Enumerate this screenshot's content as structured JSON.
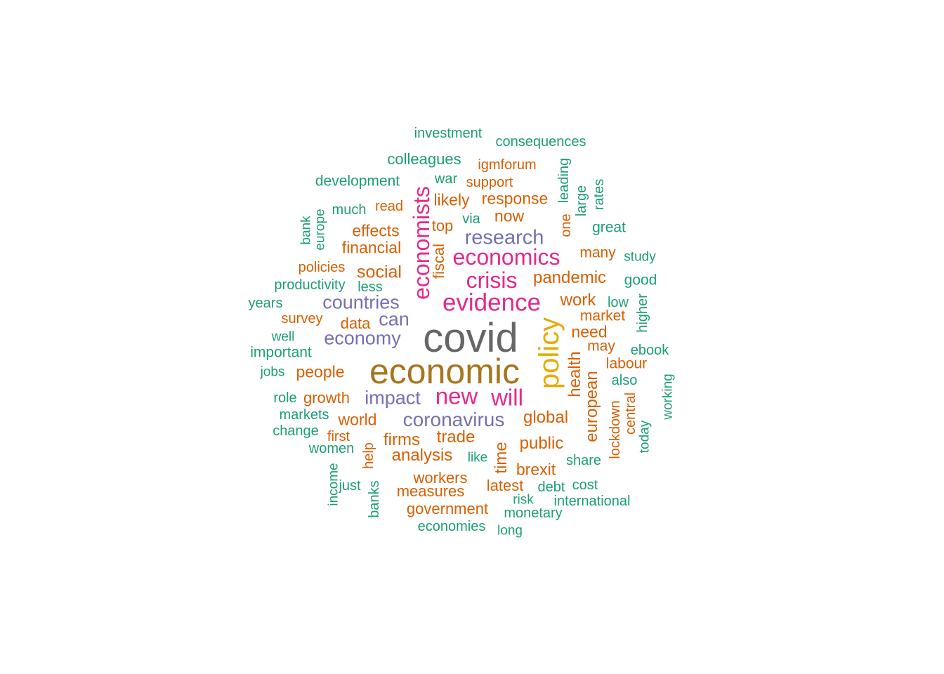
{
  "palette": {
    "green": "#1b9e77",
    "orange": "#d95f02",
    "purple": "#7570b3",
    "pink": "#e7298a",
    "olive": "#a6761d",
    "gold": "#e6ab02",
    "gray": "#666666"
  },
  "words": [
    {
      "text": "covid",
      "color": "gray"
    },
    {
      "text": "economic",
      "color": "olive"
    },
    {
      "text": "policy",
      "color": "gold"
    },
    {
      "text": "evidence",
      "color": "pink"
    },
    {
      "text": "crisis",
      "color": "pink"
    },
    {
      "text": "economics",
      "color": "pink"
    },
    {
      "text": "economists",
      "color": "pink"
    },
    {
      "text": "new",
      "color": "pink"
    },
    {
      "text": "will",
      "color": "pink"
    },
    {
      "text": "research",
      "color": "purple"
    },
    {
      "text": "countries",
      "color": "purple"
    },
    {
      "text": "can",
      "color": "purple"
    },
    {
      "text": "economy",
      "color": "purple"
    },
    {
      "text": "impact",
      "color": "purple"
    },
    {
      "text": "coronavirus",
      "color": "purple"
    },
    {
      "text": "pandemic",
      "color": "orange"
    },
    {
      "text": "social",
      "color": "orange"
    },
    {
      "text": "financial",
      "color": "orange"
    },
    {
      "text": "effects",
      "color": "orange"
    },
    {
      "text": "response",
      "color": "orange"
    },
    {
      "text": "likely",
      "color": "orange"
    },
    {
      "text": "now",
      "color": "orange"
    },
    {
      "text": "top",
      "color": "orange"
    },
    {
      "text": "fiscal",
      "color": "orange"
    },
    {
      "text": "work",
      "color": "orange"
    },
    {
      "text": "need",
      "color": "orange"
    },
    {
      "text": "market",
      "color": "orange"
    },
    {
      "text": "may",
      "color": "orange"
    },
    {
      "text": "health",
      "color": "orange"
    },
    {
      "text": "european",
      "color": "orange"
    },
    {
      "text": "labour",
      "color": "orange"
    },
    {
      "text": "global",
      "color": "orange"
    },
    {
      "text": "public",
      "color": "orange"
    },
    {
      "text": "trade",
      "color": "orange"
    },
    {
      "text": "firms",
      "color": "orange"
    },
    {
      "text": "analysis",
      "color": "orange"
    },
    {
      "text": "world",
      "color": "orange"
    },
    {
      "text": "growth",
      "color": "orange"
    },
    {
      "text": "people",
      "color": "orange"
    },
    {
      "text": "data",
      "color": "orange"
    },
    {
      "text": "survey",
      "color": "orange"
    },
    {
      "text": "policies",
      "color": "orange"
    },
    {
      "text": "read",
      "color": "orange"
    },
    {
      "text": "support",
      "color": "orange"
    },
    {
      "text": "igmforum",
      "color": "orange"
    },
    {
      "text": "time",
      "color": "orange"
    },
    {
      "text": "brexit",
      "color": "orange"
    },
    {
      "text": "latest",
      "color": "orange"
    },
    {
      "text": "workers",
      "color": "orange"
    },
    {
      "text": "measures",
      "color": "orange"
    },
    {
      "text": "government",
      "color": "orange"
    },
    {
      "text": "many",
      "color": "orange"
    },
    {
      "text": "one",
      "color": "orange"
    },
    {
      "text": "lockdown",
      "color": "orange"
    },
    {
      "text": "central",
      "color": "orange"
    },
    {
      "text": "first",
      "color": "orange"
    },
    {
      "text": "help",
      "color": "orange"
    },
    {
      "text": "investment",
      "color": "green"
    },
    {
      "text": "consequences",
      "color": "green"
    },
    {
      "text": "colleagues",
      "color": "green"
    },
    {
      "text": "war",
      "color": "green"
    },
    {
      "text": "development",
      "color": "green"
    },
    {
      "text": "much",
      "color": "green"
    },
    {
      "text": "via",
      "color": "green"
    },
    {
      "text": "leading",
      "color": "green"
    },
    {
      "text": "large",
      "color": "green"
    },
    {
      "text": "rates",
      "color": "green"
    },
    {
      "text": "great",
      "color": "green"
    },
    {
      "text": "study",
      "color": "green"
    },
    {
      "text": "good",
      "color": "green"
    },
    {
      "text": "low",
      "color": "green"
    },
    {
      "text": "higher",
      "color": "green"
    },
    {
      "text": "ebook",
      "color": "green"
    },
    {
      "text": "also",
      "color": "green"
    },
    {
      "text": "working",
      "color": "green"
    },
    {
      "text": "today",
      "color": "green"
    },
    {
      "text": "share",
      "color": "green"
    },
    {
      "text": "cost",
      "color": "green"
    },
    {
      "text": "international",
      "color": "green"
    },
    {
      "text": "debt",
      "color": "green"
    },
    {
      "text": "risk",
      "color": "green"
    },
    {
      "text": "monetary",
      "color": "green"
    },
    {
      "text": "long",
      "color": "green"
    },
    {
      "text": "economies",
      "color": "green"
    },
    {
      "text": "like",
      "color": "green"
    },
    {
      "text": "banks",
      "color": "green"
    },
    {
      "text": "just",
      "color": "green"
    },
    {
      "text": "income",
      "color": "green"
    },
    {
      "text": "women",
      "color": "green"
    },
    {
      "text": "change",
      "color": "green"
    },
    {
      "text": "markets",
      "color": "green"
    },
    {
      "text": "role",
      "color": "green"
    },
    {
      "text": "jobs",
      "color": "green"
    },
    {
      "text": "important",
      "color": "green"
    },
    {
      "text": "well",
      "color": "green"
    },
    {
      "text": "years",
      "color": "green"
    },
    {
      "text": "productivity",
      "color": "green"
    },
    {
      "text": "less",
      "color": "green"
    },
    {
      "text": "bank",
      "color": "green"
    },
    {
      "text": "europe",
      "color": "green"
    }
  ]
}
